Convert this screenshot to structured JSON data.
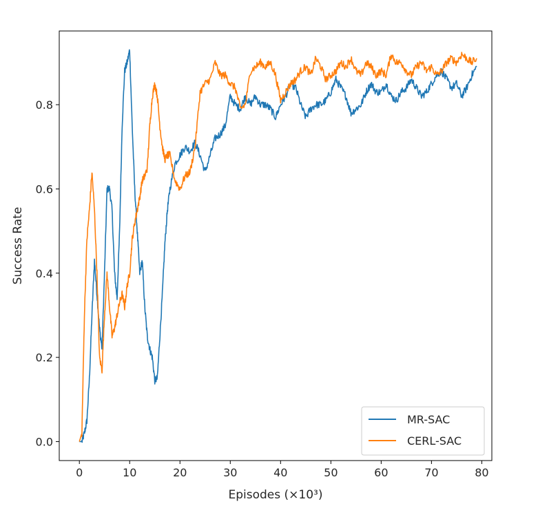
{
  "chart_data": {
    "type": "line",
    "xlabel": "Episodes (×10³)",
    "ylabel": "Success Rate",
    "xlim": [
      -4,
      82
    ],
    "ylim": [
      -0.045,
      0.975
    ],
    "xticks": [
      0,
      10,
      20,
      30,
      40,
      50,
      60,
      70,
      80
    ],
    "yticks": [
      0.0,
      0.2,
      0.4,
      0.6,
      0.8
    ],
    "xtick_labels": [
      "0",
      "10",
      "20",
      "30",
      "40",
      "50",
      "60",
      "70",
      "80"
    ],
    "ytick_labels": [
      "0.0",
      "0.2",
      "0.4",
      "0.6",
      "0.8"
    ],
    "grid": false,
    "legend": "lower-right",
    "series": [
      {
        "name": "MR-SAC",
        "color": "#1f77b4",
        "x": [
          0,
          0.5,
          1,
          1.5,
          2,
          2.5,
          3,
          3.5,
          4,
          4.5,
          5,
          5.5,
          6,
          6.5,
          7,
          7.5,
          8,
          8.5,
          9,
          9.5,
          10,
          10.5,
          11,
          11.5,
          12,
          12.5,
          13,
          13.5,
          14,
          14.5,
          15,
          15.5,
          16,
          16.5,
          17,
          17.5,
          18,
          19,
          20,
          21,
          22,
          23,
          24,
          25,
          26,
          27,
          28,
          29,
          30,
          31,
          32,
          33,
          34,
          35,
          36,
          37,
          38,
          39,
          40,
          41,
          42,
          43,
          44,
          45,
          46,
          47,
          48,
          49,
          50,
          51,
          52,
          53,
          54,
          55,
          56,
          57,
          58,
          59,
          60,
          61,
          62,
          63,
          64,
          65,
          66,
          67,
          68,
          69,
          70,
          71,
          72,
          73,
          74,
          75,
          76,
          77,
          78,
          79
        ],
        "y": [
          0.0,
          0.0,
          0.02,
          0.05,
          0.15,
          0.3,
          0.43,
          0.35,
          0.27,
          0.22,
          0.4,
          0.6,
          0.6,
          0.55,
          0.4,
          0.34,
          0.5,
          0.75,
          0.88,
          0.9,
          0.93,
          0.75,
          0.6,
          0.5,
          0.4,
          0.43,
          0.32,
          0.25,
          0.22,
          0.2,
          0.145,
          0.15,
          0.25,
          0.35,
          0.47,
          0.55,
          0.6,
          0.66,
          0.68,
          0.7,
          0.69,
          0.71,
          0.68,
          0.64,
          0.68,
          0.72,
          0.73,
          0.75,
          0.82,
          0.8,
          0.79,
          0.82,
          0.8,
          0.82,
          0.8,
          0.8,
          0.79,
          0.77,
          0.8,
          0.82,
          0.85,
          0.84,
          0.8,
          0.77,
          0.79,
          0.8,
          0.8,
          0.81,
          0.83,
          0.86,
          0.84,
          0.82,
          0.78,
          0.79,
          0.8,
          0.83,
          0.85,
          0.83,
          0.83,
          0.85,
          0.82,
          0.81,
          0.83,
          0.84,
          0.86,
          0.84,
          0.82,
          0.83,
          0.85,
          0.87,
          0.88,
          0.86,
          0.84,
          0.85,
          0.82,
          0.84,
          0.87,
          0.89
        ]
      },
      {
        "name": "CERL-SAC",
        "color": "#ff7f0e",
        "x": [
          0,
          0.5,
          1,
          1.5,
          2,
          2.5,
          3,
          3.5,
          4,
          4.5,
          5,
          5.5,
          6,
          6.5,
          7,
          7.5,
          8,
          8.5,
          9,
          9.5,
          10,
          10.5,
          11,
          11.5,
          12,
          12.5,
          13,
          13.5,
          14,
          14.5,
          15,
          15.5,
          16,
          16.5,
          17,
          17.5,
          18,
          19,
          20,
          21,
          22,
          23,
          24,
          25,
          26,
          27,
          28,
          29,
          30,
          31,
          32,
          33,
          34,
          35,
          36,
          37,
          38,
          39,
          40,
          41,
          42,
          43,
          44,
          45,
          46,
          47,
          48,
          49,
          50,
          51,
          52,
          53,
          54,
          55,
          56,
          57,
          58,
          59,
          60,
          61,
          62,
          63,
          64,
          65,
          66,
          67,
          68,
          69,
          70,
          71,
          72,
          73,
          74,
          75,
          76,
          77,
          78,
          79
        ],
        "y": [
          0.0,
          0.02,
          0.3,
          0.48,
          0.55,
          0.64,
          0.55,
          0.4,
          0.2,
          0.17,
          0.3,
          0.4,
          0.32,
          0.25,
          0.27,
          0.3,
          0.33,
          0.35,
          0.32,
          0.37,
          0.4,
          0.48,
          0.52,
          0.55,
          0.58,
          0.62,
          0.63,
          0.65,
          0.75,
          0.82,
          0.85,
          0.82,
          0.75,
          0.7,
          0.67,
          0.68,
          0.68,
          0.62,
          0.6,
          0.63,
          0.64,
          0.7,
          0.83,
          0.85,
          0.86,
          0.9,
          0.87,
          0.87,
          0.85,
          0.84,
          0.79,
          0.8,
          0.88,
          0.89,
          0.9,
          0.89,
          0.9,
          0.87,
          0.81,
          0.83,
          0.85,
          0.86,
          0.88,
          0.89,
          0.87,
          0.91,
          0.89,
          0.86,
          0.87,
          0.88,
          0.9,
          0.89,
          0.91,
          0.88,
          0.87,
          0.9,
          0.89,
          0.87,
          0.88,
          0.87,
          0.92,
          0.9,
          0.9,
          0.88,
          0.87,
          0.89,
          0.9,
          0.88,
          0.89,
          0.87,
          0.88,
          0.9,
          0.91,
          0.9,
          0.92,
          0.91,
          0.9,
          0.91
        ]
      }
    ]
  }
}
